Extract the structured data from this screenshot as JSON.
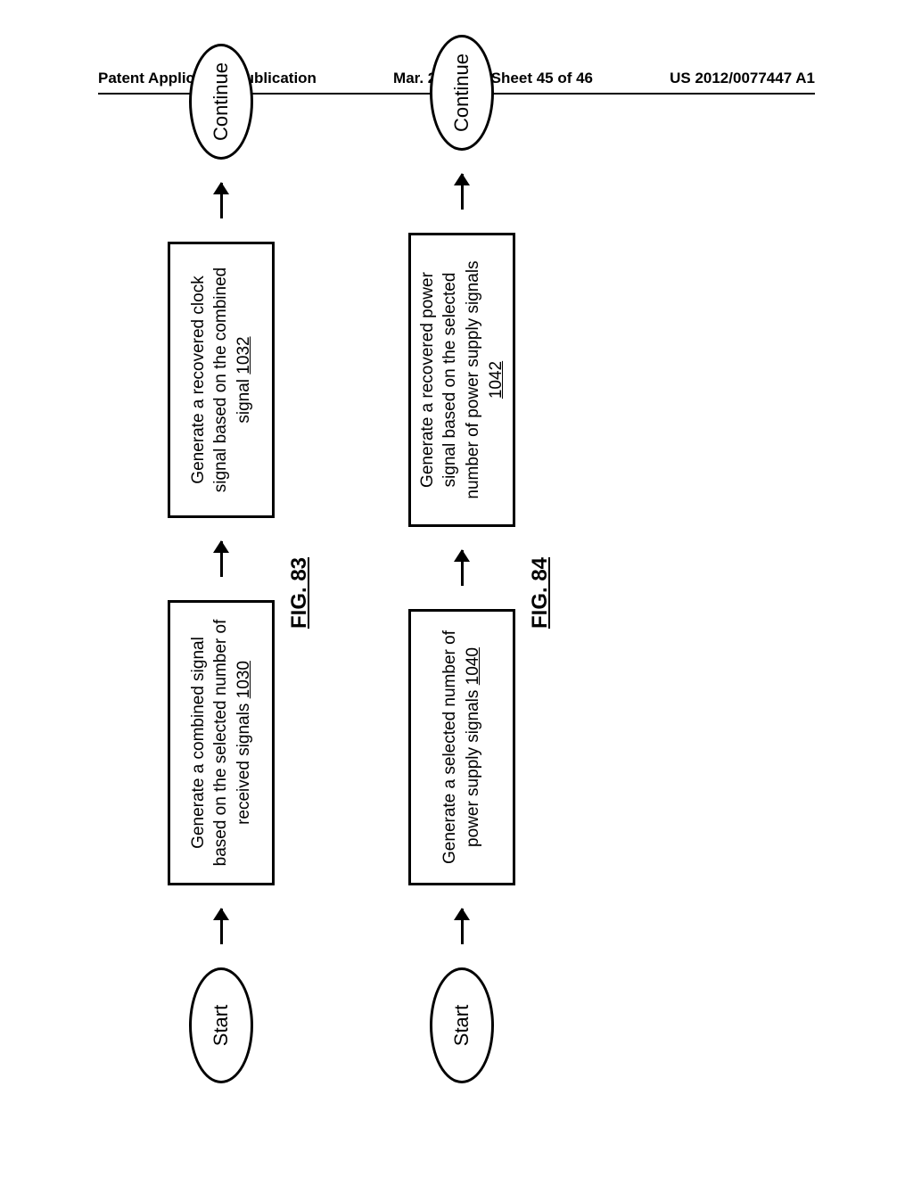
{
  "header": {
    "left": "Patent Application Publication",
    "center": "Mar. 29, 2012  Sheet 45 of 46",
    "right": "US 2012/0077447 A1"
  },
  "fig83": {
    "label": "FIG. 83",
    "start": "Start",
    "step1_text": "Generate a combined signal based on the selected number of received signals ",
    "step1_num": "1030",
    "step2_text": "Generate a recovered clock signal based on the combined signal ",
    "step2_num": "1032",
    "continue": "Continue"
  },
  "fig84": {
    "label": "FIG. 84",
    "start": "Start",
    "step1_text": "Generate a selected number of power supply signals ",
    "step1_num": "1040",
    "step2_text": "Generate a recovered power signal based on the selected number of power supply signals ",
    "step2_num": "1042",
    "continue": "Continue"
  }
}
